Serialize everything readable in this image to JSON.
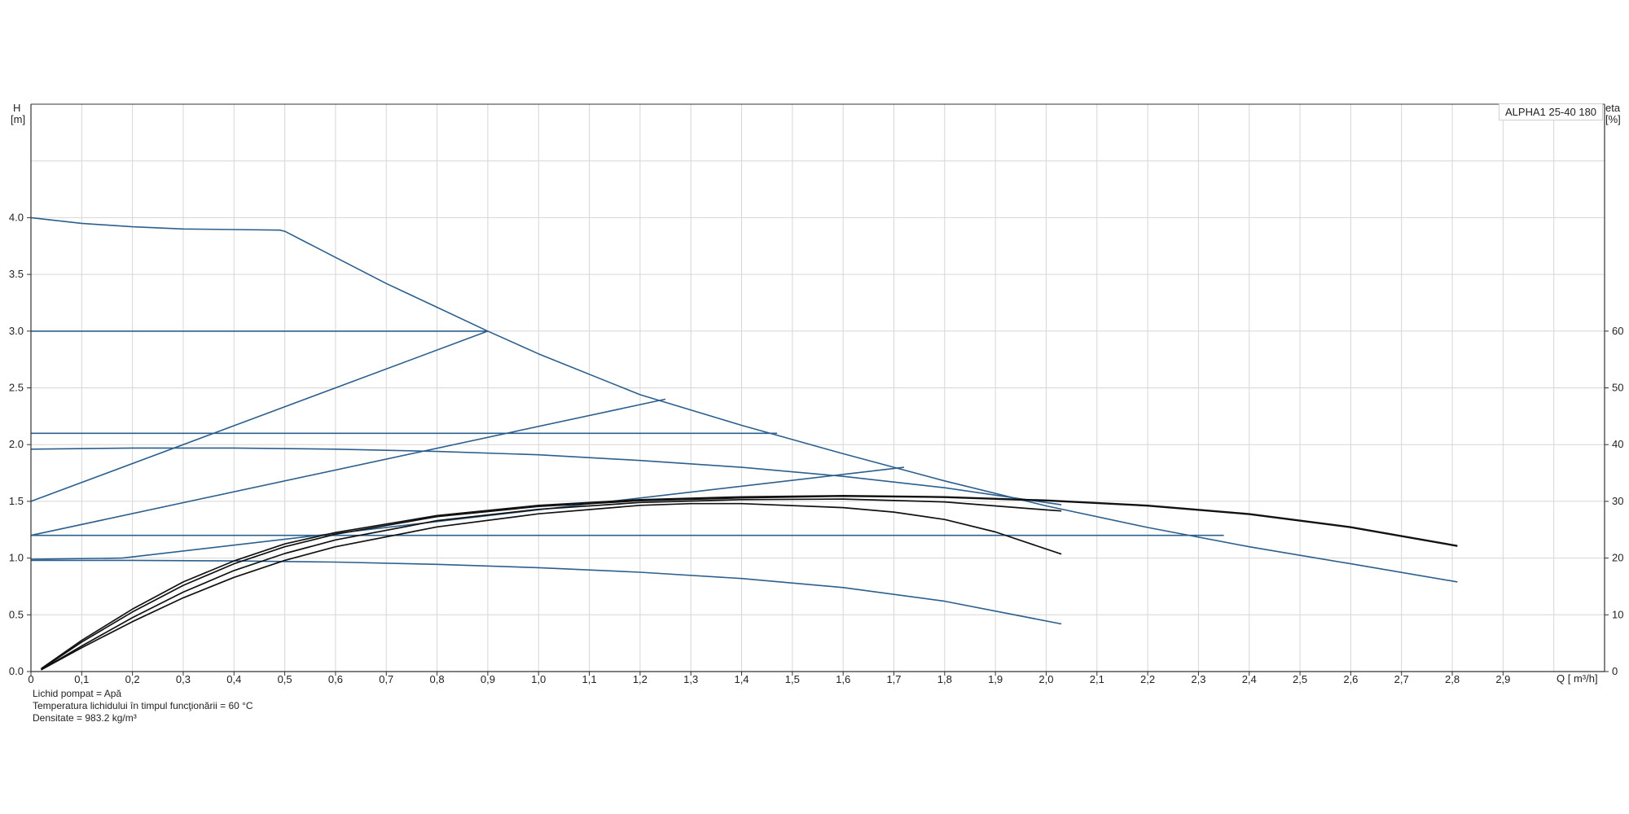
{
  "chart_data": {
    "type": "line",
    "legend": "ALPHA1 25-40 180",
    "legend_position": "top-right",
    "grid": true,
    "y_left_label": [
      "H",
      "[m]"
    ],
    "y_right_label": [
      "eta",
      "[%]"
    ],
    "x_label": "Q [ m³/h]",
    "xlim": [
      0,
      3.1
    ],
    "ylim": [
      0,
      5.0
    ],
    "y_right_lim": [
      0,
      100
    ],
    "x_ticks": [
      "0",
      "0,1",
      "0,2",
      "0,3",
      "0,4",
      "0,5",
      "0,6",
      "0,7",
      "0,8",
      "0,9",
      "1,0",
      "1,1",
      "1,2",
      "1,3",
      "1,4",
      "1,5",
      "1,6",
      "1,7",
      "1,8",
      "1,9",
      "2,0",
      "2,1",
      "2,2",
      "2,3",
      "2,4",
      "2,5",
      "2,6",
      "2,7",
      "2,8",
      "2,9"
    ],
    "y_left_ticks": [
      "0.0",
      "0.5",
      "1.0",
      "1.5",
      "2.0",
      "2.5",
      "3.0",
      "3.5",
      "4.0"
    ],
    "y_right_ticks": [
      "0",
      "10",
      "20",
      "30",
      "40",
      "50",
      "60"
    ],
    "head_series": [
      {
        "x": [
          0,
          0.1,
          0.2,
          0.3,
          0.4,
          0.49,
          0.5,
          0.6,
          0.7,
          0.8,
          0.9,
          1.0,
          1.2,
          1.4,
          1.6,
          1.8,
          2.0,
          2.2,
          2.4,
          2.6,
          2.81
        ],
        "y": [
          4.0,
          3.95,
          3.92,
          3.9,
          3.895,
          3.89,
          3.88,
          3.65,
          3.42,
          3.21,
          3.0,
          2.8,
          2.44,
          2.17,
          1.92,
          1.68,
          1.46,
          1.27,
          1.1,
          0.95,
          0.79
        ]
      },
      {
        "x": [
          0,
          0.9
        ],
        "y": [
          3.0,
          3.0
        ]
      },
      {
        "x": [
          0,
          0.9
        ],
        "y": [
          1.5,
          3.0
        ]
      },
      {
        "x": [
          0,
          1.47
        ],
        "y": [
          2.1,
          2.1
        ]
      },
      {
        "x": [
          0,
          1.25
        ],
        "y": [
          1.2,
          2.4
        ]
      },
      {
        "x": [
          0.18,
          1.72
        ],
        "y": [
          1.0,
          1.8
        ]
      },
      {
        "x": [
          0,
          0.18
        ],
        "y": [
          0.99,
          1.0
        ]
      },
      {
        "x": [
          0,
          2.35
        ],
        "y": [
          1.2,
          1.2
        ]
      },
      {
        "x": [
          0,
          0.2,
          0.4,
          0.6,
          0.8,
          1.0,
          1.2,
          1.4,
          1.6,
          1.8,
          2.03
        ],
        "y": [
          1.96,
          1.97,
          1.97,
          1.96,
          1.94,
          1.91,
          1.86,
          1.8,
          1.72,
          1.62,
          1.47
        ]
      },
      {
        "x": [
          0,
          0.2,
          0.4,
          0.6,
          0.8,
          1.0,
          1.2,
          1.4,
          1.6,
          1.8,
          2.03
        ],
        "y": [
          0.98,
          0.98,
          0.975,
          0.965,
          0.945,
          0.915,
          0.875,
          0.82,
          0.74,
          0.62,
          0.42
        ]
      }
    ],
    "efficiency_series": [
      {
        "x": [
          0.02,
          0.1,
          0.2,
          0.3,
          0.4,
          0.5,
          0.6,
          0.8,
          1.0,
          1.2,
          1.4,
          1.6,
          1.8,
          2.0,
          2.2,
          2.4,
          2.6,
          2.81
        ],
        "y": [
          0.5,
          5.5,
          11.0,
          15.8,
          19.5,
          22.5,
          24.5,
          27.5,
          29.3,
          30.3,
          30.8,
          31.0,
          30.8,
          30.2,
          29.3,
          27.8,
          25.5,
          22.2
        ]
      },
      {
        "x": [
          0.02,
          0.1,
          0.2,
          0.3,
          0.4,
          0.5,
          0.6,
          0.8,
          1.0,
          1.2,
          1.4,
          1.6,
          1.8,
          2.0,
          2.2,
          2.4,
          2.6,
          2.81
        ],
        "y": [
          0.4,
          5.2,
          10.5,
          15.2,
          19.0,
          22.0,
          24.2,
          27.3,
          29.1,
          30.1,
          30.6,
          30.9,
          30.7,
          30.1,
          29.2,
          27.7,
          25.4,
          22.1
        ]
      },
      {
        "x": [
          0.02,
          0.1,
          0.2,
          0.3,
          0.4,
          0.5,
          0.6,
          0.8,
          1.0,
          1.2,
          1.4,
          1.6,
          1.8,
          2.0,
          2.03
        ],
        "y": [
          0.3,
          4.5,
          9.5,
          14.0,
          17.8,
          20.8,
          23.2,
          26.6,
          28.6,
          29.8,
          30.3,
          30.4,
          29.9,
          28.5,
          28.3
        ]
      },
      {
        "x": [
          0.02,
          0.1,
          0.2,
          0.3,
          0.4,
          0.5,
          0.6,
          0.8,
          1.0,
          1.2,
          1.3,
          1.4,
          1.6,
          1.7,
          1.8,
          1.9,
          2.03
        ],
        "y": [
          0.3,
          4.2,
          8.8,
          13.0,
          16.6,
          19.6,
          22.0,
          25.5,
          27.8,
          29.3,
          29.6,
          29.6,
          28.9,
          28.1,
          26.8,
          24.6,
          20.7
        ]
      }
    ]
  },
  "footer": {
    "line1": "Lichid pompat = Apă",
    "line2": "Temperatura lichidului în timpul funcţionării = 60  °C",
    "line3": "Densitate = 983.2  kg/m³"
  },
  "colors": {
    "head": "#2b5f8e",
    "efficiency": "#111111",
    "grid": "#d6d6d6",
    "axis": "#333333"
  }
}
